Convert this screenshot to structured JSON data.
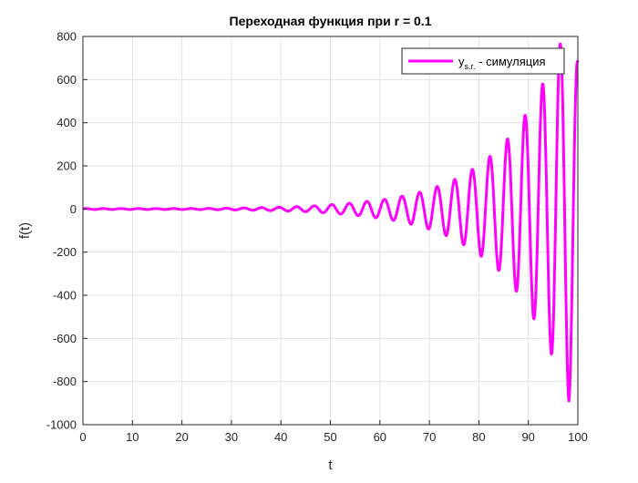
{
  "chart_data": {
    "type": "line",
    "title": "Переходная функция при r = 0.1",
    "xlabel": "t",
    "ylabel": "f(t)",
    "xlim": [
      0,
      100
    ],
    "ylim": [
      -1000,
      800
    ],
    "xticks": [
      0,
      10,
      20,
      30,
      40,
      50,
      60,
      70,
      80,
      90,
      100
    ],
    "yticks": [
      -1000,
      -800,
      -600,
      -400,
      -200,
      0,
      200,
      400,
      600,
      800
    ],
    "grid": true,
    "legend_position": "top-right",
    "series": [
      {
        "name_main": "y",
        "name_sub": "s.r.",
        "name_rest": " - симуляция",
        "color": "#ff00ff",
        "oscillation_period": 3.55,
        "peaks": [
          {
            "t": 44.0,
            "f": 12
          },
          {
            "t": 47.5,
            "f": 16
          },
          {
            "t": 51.0,
            "f": 22
          },
          {
            "t": 54.5,
            "f": 28
          },
          {
            "t": 58.0,
            "f": 37
          },
          {
            "t": 61.5,
            "f": 46
          },
          {
            "t": 65.0,
            "f": 61
          },
          {
            "t": 68.5,
            "f": 80
          },
          {
            "t": 72.0,
            "f": 107
          },
          {
            "t": 75.5,
            "f": 140
          },
          {
            "t": 79.0,
            "f": 187
          },
          {
            "t": 82.5,
            "f": 248
          },
          {
            "t": 86.0,
            "f": 330
          },
          {
            "t": 89.5,
            "f": 440
          },
          {
            "t": 93.0,
            "f": 585
          },
          {
            "t": 96.6,
            "f": 775
          },
          {
            "t": 100.0,
            "f": 680
          }
        ],
        "troughs": [
          {
            "t": 42.0,
            "f": -10
          },
          {
            "t": 45.5,
            "f": -13
          },
          {
            "t": 49.0,
            "f": -18
          },
          {
            "t": 52.5,
            "f": -24
          },
          {
            "t": 56.0,
            "f": -32
          },
          {
            "t": 59.5,
            "f": -42
          },
          {
            "t": 63.0,
            "f": -55
          },
          {
            "t": 66.5,
            "f": -72
          },
          {
            "t": 70.0,
            "f": -95
          },
          {
            "t": 73.5,
            "f": -125
          },
          {
            "t": 77.0,
            "f": -168
          },
          {
            "t": 80.5,
            "f": -220
          },
          {
            "t": 84.0,
            "f": -285
          },
          {
            "t": 87.5,
            "f": -380
          },
          {
            "t": 91.0,
            "f": -505
          },
          {
            "t": 94.6,
            "f": -670
          },
          {
            "t": 98.2,
            "f": -890
          }
        ]
      }
    ]
  }
}
